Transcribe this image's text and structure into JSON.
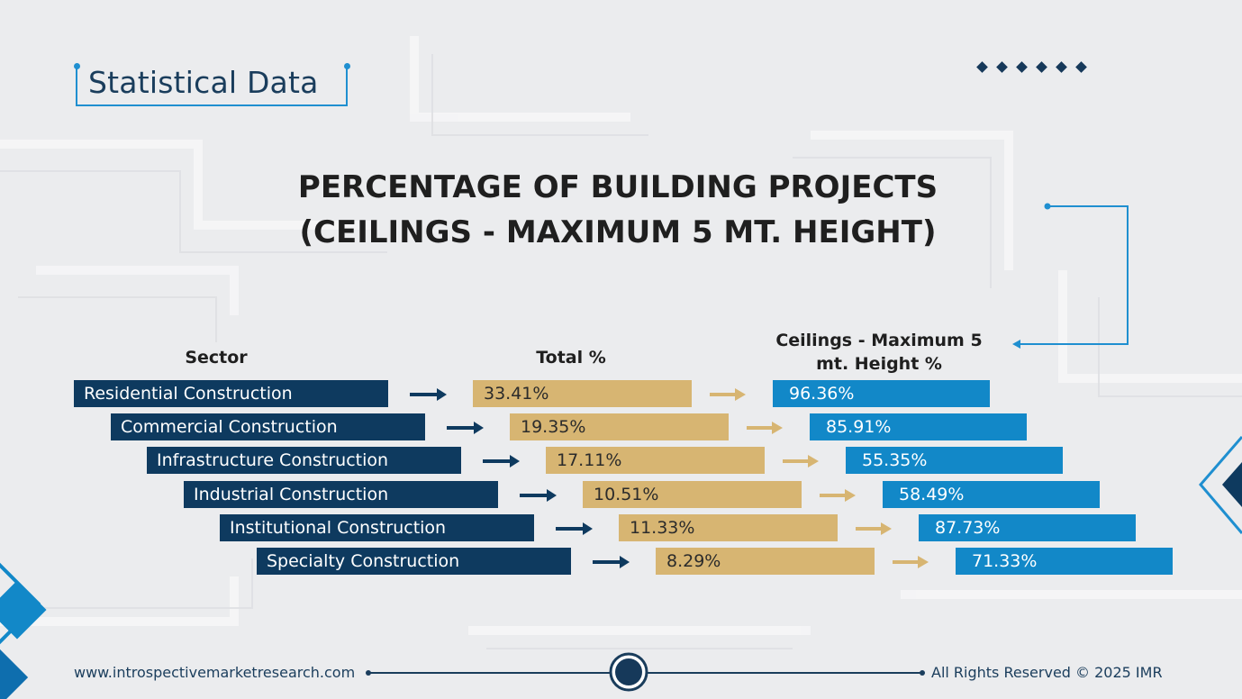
{
  "header": {
    "badge_title": "Statistical Data"
  },
  "colors": {
    "sector_bar": "#0e3a5f",
    "total_bar": "#d7b572",
    "ceiling_bar": "#1288c8",
    "accent": "#1f8fd0"
  },
  "chart_data": {
    "type": "table",
    "title_line1": "PERCENTAGE OF BUILDING PROJECTS",
    "title_line2": "(CEILINGS - MAXIMUM 5 MT. HEIGHT)",
    "columns": [
      "Sector",
      "Total %",
      "Ceilings - Maximum 5 mt. Height %"
    ],
    "column_head_ceiling_line1": "Ceilings - Maximum 5",
    "column_head_ceiling_line2": "mt. Height %",
    "rows": [
      {
        "sector": "Residential Construction",
        "total": "33.41%",
        "ceiling": "96.36%"
      },
      {
        "sector": "Commercial Construction",
        "total": "19.35%",
        "ceiling": "85.91%"
      },
      {
        "sector": "Infrastructure Construction",
        "total": "17.11%",
        "ceiling": "55.35%"
      },
      {
        "sector": "Industrial Construction",
        "total": "10.51%",
        "ceiling": "58.49%"
      },
      {
        "sector": "Institutional Construction",
        "total": "11.33%",
        "ceiling": "87.73%"
      },
      {
        "sector": "Specialty Construction",
        "total": "8.29%",
        "ceiling": "71.33%"
      }
    ]
  },
  "footer": {
    "url": "www.introspectivemarketresearch.com",
    "copyright": "All Rights Reserved © 2025 IMR"
  }
}
